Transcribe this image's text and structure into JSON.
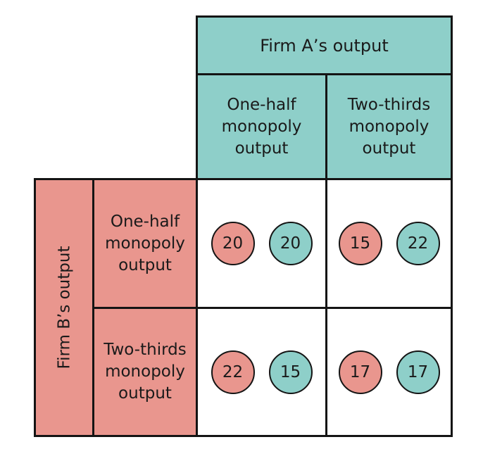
{
  "column_header": {
    "title": "Firm A’s output",
    "options": [
      [
        "One-half",
        "monopoly",
        "output"
      ],
      [
        "Two-thirds",
        "monopoly",
        "output"
      ]
    ]
  },
  "row_header": {
    "title": "Firm B’s output",
    "options": [
      [
        "One-half",
        "monopoly",
        "output"
      ],
      [
        "Two-thirds",
        "monopoly",
        "output"
      ]
    ]
  },
  "payoffs": [
    [
      {
        "firm_b": "20",
        "firm_a": "20"
      },
      {
        "firm_b": "15",
        "firm_a": "22"
      }
    ],
    [
      {
        "firm_b": "22",
        "firm_a": "15"
      },
      {
        "firm_b": "17",
        "firm_a": "17"
      }
    ]
  ],
  "colors": {
    "firm_a": "#8ecfc9",
    "firm_b": "#e9968e",
    "border": "#141414"
  }
}
